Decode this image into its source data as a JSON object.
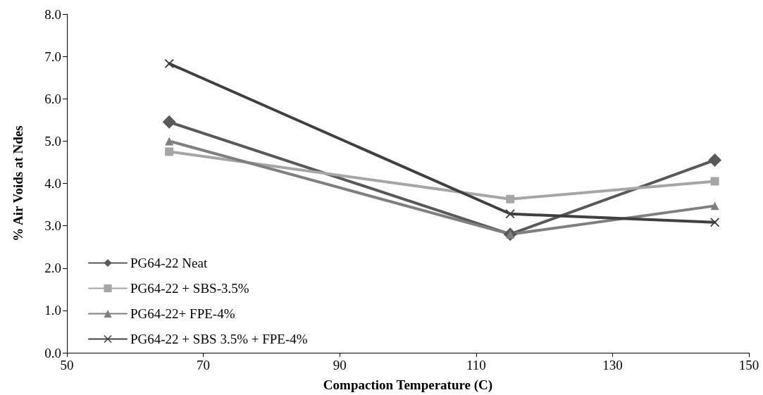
{
  "chart_data": {
    "type": "line",
    "xlabel": "Compaction Temperature (C)",
    "ylabel": "% Air Voids at Ndes",
    "x": [
      65,
      115,
      145
    ],
    "series": [
      {
        "name": "PG64-22 Neat",
        "color": "#595959",
        "marker": "diamond",
        "values": [
          5.45,
          2.8,
          4.55
        ]
      },
      {
        "name": "PG64-22 + SBS-3.5%",
        "color": "#a6a6a6",
        "marker": "square",
        "values": [
          4.75,
          3.63,
          4.05
        ]
      },
      {
        "name": "PG64-22+ FPE-4%",
        "color": "#7f7f7f",
        "marker": "triangle",
        "values": [
          5.0,
          2.8,
          3.47
        ]
      },
      {
        "name": "PG64-22 + SBS 3.5% + FPE-4%",
        "color": "#404040",
        "marker": "cross",
        "values": [
          6.83,
          3.28,
          3.08
        ]
      }
    ],
    "xlim": [
      50,
      150
    ],
    "xticks": [
      50,
      70,
      90,
      110,
      130,
      150
    ],
    "ylim": [
      0,
      8
    ],
    "yticks": [
      {
        "value": 0,
        "label": "0.0"
      },
      {
        "value": 1,
        "label": "1.0"
      },
      {
        "value": 2,
        "label": "2.0"
      },
      {
        "value": 3,
        "label": "3.0"
      },
      {
        "value": 4,
        "label": "4.0"
      },
      {
        "value": 5,
        "label": "5.0"
      },
      {
        "value": 6,
        "label": "6.0"
      },
      {
        "value": 7,
        "label": "7.0"
      },
      {
        "value": 8,
        "label": "8.0"
      }
    ],
    "grid": false,
    "legend": "bottom left",
    "line_style": "solid"
  }
}
